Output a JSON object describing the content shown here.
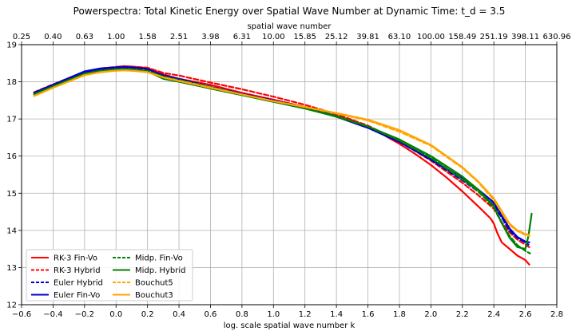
{
  "chart_data": {
    "type": "line",
    "title": "Powerspectra: Total Kinetic Energy over Spatial Wave Number at Dynamic Time: t_d = 3.5",
    "xlabel": "log. scale spatial wave number k",
    "ylabel": "",
    "top_xlabel": "spatial wave number",
    "xlim": [
      -0.6,
      2.8
    ],
    "ylim": [
      12,
      19
    ],
    "x_ticks": [
      -0.6,
      -0.4,
      -0.2,
      0.0,
      0.2,
      0.4,
      0.6,
      0.8,
      1.0,
      1.2,
      1.4,
      1.6,
      1.8,
      2.0,
      2.2,
      2.4,
      2.6,
      2.8
    ],
    "x_tick_labels": [
      "−0.6",
      "−0.4",
      "−0.2",
      "0.0",
      "0.2",
      "0.4",
      "0.6",
      "0.8",
      "1.0",
      "1.2",
      "1.4",
      "1.6",
      "1.8",
      "2.0",
      "2.2",
      "2.4",
      "2.6",
      "2.8"
    ],
    "y_ticks": [
      12,
      13,
      14,
      15,
      16,
      17,
      18,
      19
    ],
    "y_tick_labels": [
      "12",
      "13",
      "14",
      "15",
      "16",
      "17",
      "18",
      "19"
    ],
    "top_x_ticks": [
      -0.6,
      -0.4,
      -0.2,
      0.0,
      0.2,
      0.4,
      0.6,
      0.8,
      1.0,
      1.2,
      1.4,
      1.6,
      1.8,
      2.0,
      2.2,
      2.4,
      2.6,
      2.8
    ],
    "top_x_tick_labels": [
      "0.25",
      "0.40",
      "0.63",
      "1.00",
      "1.58",
      "2.51",
      "3.98",
      "6.31",
      "10.00",
      "15.85",
      "25.12",
      "39.81",
      "63.10",
      "100.00",
      "158.49",
      "251.19",
      "398.11",
      "630.96"
    ],
    "grid": true,
    "legend": {
      "placement": "bottom-left",
      "columns": 2
    },
    "series": [
      {
        "name": "RK-3  Fin-Vo",
        "color": "#ff0000",
        "dash": "solid",
        "x": [
          -0.52,
          -0.4,
          -0.2,
          -0.1,
          0.0,
          0.05,
          0.1,
          0.2,
          0.3,
          0.4,
          0.6,
          0.8,
          1.0,
          1.2,
          1.4,
          1.5,
          1.6,
          1.7,
          1.8,
          1.9,
          2.0,
          2.1,
          2.2,
          2.3,
          2.38,
          2.4,
          2.42,
          2.45,
          2.5,
          2.55,
          2.6,
          2.625
        ],
        "y": [
          17.7,
          17.9,
          18.25,
          18.34,
          18.39,
          18.42,
          18.41,
          18.37,
          18.2,
          18.08,
          17.92,
          17.7,
          17.52,
          17.32,
          17.08,
          16.96,
          16.78,
          16.57,
          16.33,
          16.06,
          15.76,
          15.42,
          15.05,
          14.65,
          14.32,
          14.18,
          13.95,
          13.68,
          13.5,
          13.32,
          13.2,
          13.08
        ]
      },
      {
        "name": "RK-3  Hybrid",
        "color": "#ff0000",
        "dash": "dashed",
        "x": [
          -0.52,
          -0.4,
          -0.2,
          -0.1,
          0.0,
          0.05,
          0.1,
          0.2,
          0.3,
          0.4,
          0.6,
          0.8,
          1.0,
          1.2,
          1.4,
          1.6,
          1.8,
          2.0,
          2.2,
          2.3,
          2.4,
          2.45,
          2.5,
          2.55,
          2.6,
          2.625
        ],
        "y": [
          17.72,
          17.93,
          18.27,
          18.36,
          18.4,
          18.42,
          18.41,
          18.38,
          18.24,
          18.17,
          17.98,
          17.8,
          17.6,
          17.38,
          17.13,
          16.82,
          16.4,
          15.88,
          15.28,
          14.95,
          14.58,
          14.22,
          13.95,
          13.75,
          13.62,
          13.55
        ]
      },
      {
        "name": "Euler Hybrid",
        "color": "#0000cc",
        "dash": "dashed",
        "x": [
          -0.52,
          -0.4,
          -0.2,
          -0.1,
          0.0,
          0.05,
          0.1,
          0.2,
          0.3,
          0.4,
          0.6,
          0.8,
          1.0,
          1.2,
          1.4,
          1.6,
          1.8,
          2.0,
          2.2,
          2.3,
          2.4,
          2.45,
          2.5,
          2.55,
          2.6,
          2.62
        ],
        "y": [
          17.7,
          17.92,
          18.26,
          18.33,
          18.37,
          18.38,
          18.37,
          18.33,
          18.18,
          18.08,
          17.87,
          17.68,
          17.5,
          17.32,
          17.08,
          16.78,
          16.38,
          15.9,
          15.35,
          15.05,
          14.68,
          14.35,
          14.0,
          13.8,
          13.68,
          13.62
        ]
      },
      {
        "name": "Euler Fin-Vo",
        "color": "#0000cc",
        "dash": "solid",
        "x": [
          -0.52,
          -0.4,
          -0.2,
          -0.1,
          0.0,
          0.05,
          0.1,
          0.2,
          0.3,
          0.4,
          0.6,
          0.8,
          1.0,
          1.2,
          1.4,
          1.6,
          1.8,
          2.0,
          2.2,
          2.3,
          2.4,
          2.45,
          2.5,
          2.55,
          2.6,
          2.625
        ],
        "y": [
          17.71,
          17.92,
          18.28,
          18.36,
          18.39,
          18.4,
          18.39,
          18.35,
          18.16,
          18.05,
          17.85,
          17.66,
          17.48,
          17.3,
          17.06,
          16.76,
          16.38,
          15.92,
          15.4,
          15.1,
          14.75,
          14.4,
          14.05,
          13.82,
          13.7,
          13.68
        ]
      },
      {
        "name": "Midp. Fin-Vo",
        "color": "#008000",
        "dash": "dashed",
        "x": [
          -0.52,
          -0.4,
          -0.2,
          -0.1,
          0.0,
          0.05,
          0.1,
          0.2,
          0.3,
          0.4,
          0.6,
          0.8,
          1.0,
          1.2,
          1.4,
          1.6,
          1.8,
          2.0,
          2.2,
          2.3,
          2.4,
          2.45,
          2.5,
          2.55,
          2.6,
          2.63
        ],
        "y": [
          17.67,
          17.88,
          18.21,
          18.29,
          18.34,
          18.35,
          18.34,
          18.3,
          18.14,
          18.05,
          17.86,
          17.66,
          17.48,
          17.3,
          17.08,
          16.8,
          16.42,
          15.95,
          15.38,
          15.05,
          14.62,
          14.2,
          13.85,
          13.6,
          13.45,
          13.38
        ]
      },
      {
        "name": "Midp. Hybrid",
        "color": "#008000",
        "dash": "solid",
        "x": [
          -0.52,
          -0.4,
          -0.2,
          -0.1,
          0.0,
          0.05,
          0.1,
          0.2,
          0.3,
          0.4,
          0.6,
          0.8,
          1.0,
          1.2,
          1.4,
          1.6,
          1.8,
          2.0,
          2.2,
          2.3,
          2.4,
          2.45,
          2.5,
          2.55,
          2.6,
          2.62,
          2.64
        ],
        "y": [
          17.66,
          17.88,
          18.22,
          18.3,
          18.34,
          18.35,
          18.33,
          18.28,
          18.08,
          18.0,
          17.82,
          17.64,
          17.46,
          17.28,
          17.06,
          16.8,
          16.45,
          16.0,
          15.45,
          15.1,
          14.65,
          14.2,
          13.8,
          13.55,
          13.5,
          13.85,
          14.45
        ]
      },
      {
        "name": "Bouchut5",
        "color": "#ffa500",
        "dash": "dashed",
        "x": [
          -0.52,
          -0.4,
          -0.2,
          -0.1,
          0.0,
          0.05,
          0.1,
          0.2,
          0.3,
          0.4,
          0.6,
          0.8,
          1.0,
          1.2,
          1.4,
          1.6,
          1.8,
          2.0,
          2.2,
          2.3,
          2.4,
          2.45,
          2.5,
          2.55,
          2.6,
          2.625
        ],
        "y": [
          17.62,
          17.84,
          18.18,
          18.26,
          18.3,
          18.31,
          18.3,
          18.26,
          18.12,
          18.03,
          17.85,
          17.66,
          17.48,
          17.32,
          17.15,
          16.96,
          16.66,
          16.28,
          15.68,
          15.3,
          14.82,
          14.48,
          14.15,
          13.98,
          13.88,
          13.85
        ]
      },
      {
        "name": "Bouchut3",
        "color": "#ffa500",
        "dash": "solid",
        "x": [
          -0.52,
          -0.4,
          -0.2,
          -0.1,
          0.0,
          0.05,
          0.1,
          0.2,
          0.3,
          0.4,
          0.6,
          0.8,
          1.0,
          1.2,
          1.4,
          1.6,
          1.8,
          2.0,
          2.2,
          2.3,
          2.4,
          2.45,
          2.5,
          2.55,
          2.6,
          2.625
        ],
        "y": [
          17.62,
          17.84,
          18.18,
          18.26,
          18.3,
          18.31,
          18.3,
          18.26,
          18.12,
          18.02,
          17.84,
          17.66,
          17.48,
          17.32,
          17.16,
          16.98,
          16.7,
          16.3,
          15.7,
          15.32,
          14.86,
          14.52,
          14.18,
          14.0,
          13.9,
          13.88
        ]
      }
    ]
  }
}
